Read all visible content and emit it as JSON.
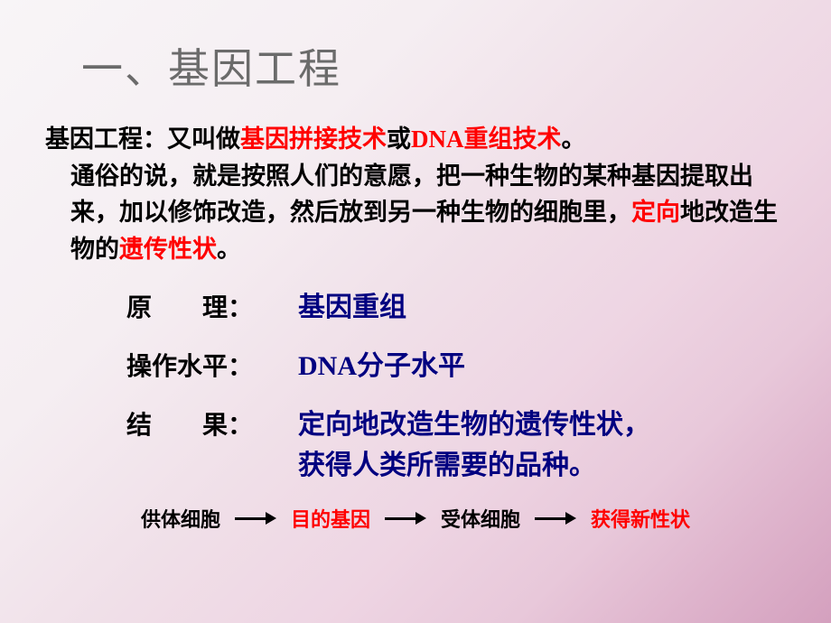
{
  "title": "一、基因工程",
  "definition": {
    "lead": "基因工程：",
    "p1a": "又叫做",
    "p1_red1": "基因拼接技术",
    "p1b": "或",
    "p1_red2": "DNA重组技术",
    "p1c": "。",
    "p2": "通俗的说，就是按照人们的意愿，把一种生物的某种基因提取出来，加以修饰改造，然后放到另一种生物的细胞里，",
    "p2_red1": "定向",
    "p2d": "地改造生物的",
    "p2_red2": "遗传性状",
    "p2e": "。"
  },
  "rows": {
    "principle_label": "原　　理：",
    "principle_value": "基因重组",
    "level_label": "操作水平：",
    "level_value": "DNA分子水平",
    "result_label": "结　　果：",
    "result_value_line1": "定向地改造生物的遗传性状，",
    "result_value_line2": "获得人类所需要的品种。"
  },
  "flow": {
    "n1": "供体细胞",
    "n2": "目的基因",
    "n3": "受体细胞",
    "n4": "获得新性状"
  },
  "colors": {
    "title_gray": "#6b6b6b",
    "red": "#ff0000",
    "darkblue": "#000080",
    "black": "#000000",
    "bg_light": "#f8f5f7",
    "bg_dark": "#d4a0be"
  },
  "fonts": {
    "title_pt": 46,
    "body_pt": 27,
    "label_pt": 28,
    "value_pt": 30,
    "flow_pt": 22
  }
}
